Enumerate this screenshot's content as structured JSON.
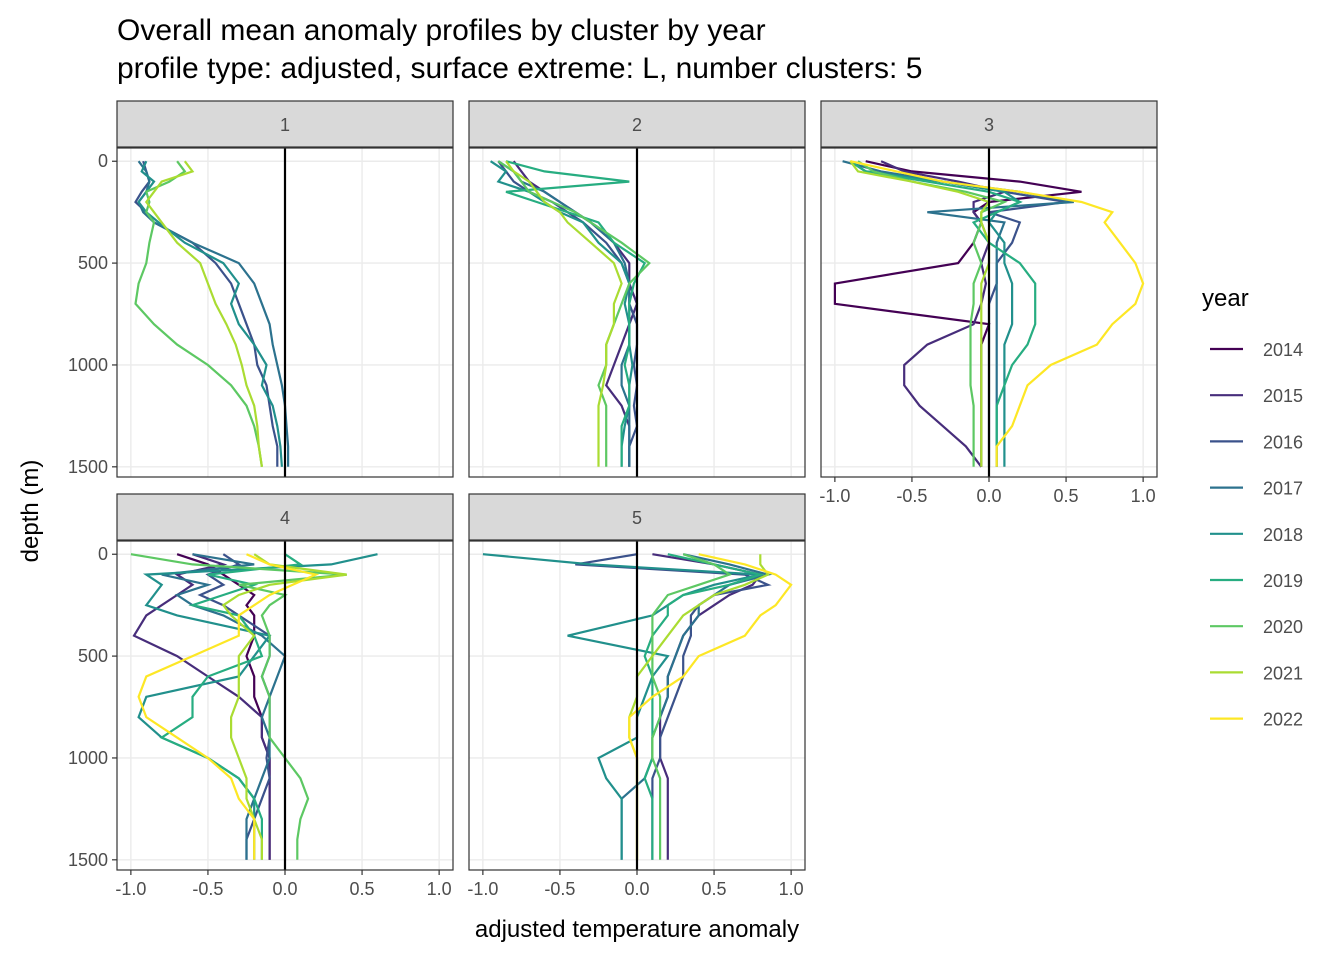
{
  "chart_data": {
    "type": "line",
    "title": "Overall mean anomaly profiles by cluster by year",
    "subtitle": "profile type: adjusted, surface extreme: L, number clusters: 5",
    "xlabel": "adjusted temperature anomaly",
    "ylabel": "depth (m)",
    "legend_title": "year",
    "facets": [
      "1",
      "2",
      "3",
      "4",
      "5"
    ],
    "xlim": [
      -1.09,
      1.09
    ],
    "xticks": [
      {
        "value": -1,
        "label": "-1.0"
      },
      {
        "value": -0.5,
        "label": "-0.5"
      },
      {
        "value": 0,
        "label": "0.0"
      },
      {
        "value": 0.5,
        "label": "0.5"
      },
      {
        "value": 1,
        "label": "1.0"
      }
    ],
    "ylim": [
      -65,
      1550
    ],
    "yticks": [
      0,
      500,
      1000,
      1500
    ],
    "grid": true,
    "reference_x": 0,
    "depth": [
      0,
      50,
      100,
      150,
      200,
      250,
      300,
      400,
      500,
      600,
      700,
      800,
      900,
      1000,
      1100,
      1200,
      1300,
      1400,
      1500
    ],
    "series": [
      {
        "name": "2014",
        "color": "#440154",
        "values": [
          null,
          null,
          [
            -0.8,
            -0.5,
            0.2,
            0.6,
            0.0,
            -0.1,
            -0.05,
            -0.1,
            -0.2,
            -1.0,
            -1.0,
            0.0,
            -0.05,
            -0.05,
            -0.05,
            -0.05,
            -0.05,
            -0.05,
            -0.05
          ],
          [
            -0.7,
            -0.5,
            -0.4,
            -0.3,
            -0.2,
            -0.25,
            -0.2,
            -0.2,
            -0.25,
            -0.2,
            -0.2,
            -0.15,
            -0.15,
            -0.1,
            -0.1,
            -0.1,
            -0.1,
            -0.1,
            -0.1
          ],
          null
        ]
      },
      {
        "name": "2015",
        "color": "#472D7B",
        "values": [
          null,
          [
            -0.8,
            -0.75,
            -0.7,
            -0.6,
            -0.5,
            -0.4,
            -0.3,
            -0.15,
            -0.05,
            -0.05,
            0.0,
            -0.05,
            -0.1,
            -0.15,
            -0.2,
            -0.1,
            -0.05,
            -0.05,
            -0.05
          ],
          [
            -0.7,
            -0.55,
            -0.2,
            0.1,
            -0.1,
            -0.1,
            -0.05,
            0,
            -0.05,
            -0.02,
            -0.05,
            -0.1,
            -0.4,
            -0.55,
            -0.55,
            -0.45,
            -0.3,
            -0.15,
            -0.05
          ],
          [
            -0.6,
            -0.4,
            -0.7,
            -0.6,
            -0.7,
            -0.8,
            -0.9,
            -0.98,
            -0.7,
            -0.5,
            -0.3,
            -0.15,
            -0.15,
            -0.1,
            -0.1,
            -0.1,
            -0.1,
            -0.1,
            -0.1
          ],
          [
            0.1,
            0.5,
            0.8,
            0.75,
            0.6,
            0.5,
            0.4,
            0.3,
            0.25,
            0.2,
            0.2,
            0.15,
            0.15,
            0.15,
            0.2,
            0.2,
            0.2,
            0.2,
            0.2
          ]
        ]
      },
      {
        "name": "2016",
        "color": "#3B528B",
        "values": [
          [
            -0.92,
            -0.9,
            -0.88,
            -0.93,
            -0.97,
            -0.9,
            -0.85,
            -0.6,
            -0.45,
            -0.35,
            -0.3,
            -0.25,
            -0.2,
            -0.18,
            -0.12,
            -0.1,
            -0.08,
            -0.05,
            -0.05
          ],
          [
            -0.9,
            -0.85,
            -0.8,
            -0.7,
            -0.55,
            -0.45,
            -0.35,
            -0.2,
            -0.1,
            -0.05,
            -0.05,
            0,
            0,
            -0.02,
            0,
            -0.02,
            0,
            -0.05,
            -0.05
          ],
          [
            -0.9,
            -0.8,
            -0.3,
            0.1,
            0.5,
            0.0,
            0.2,
            0.15,
            0.05,
            0.05,
            0.0,
            0.0,
            0.0,
            0.0,
            0.0,
            0.0,
            0.0,
            0.0,
            0.0
          ],
          [
            -0.4,
            -0.3,
            -0.5,
            -0.4,
            -0.55,
            -0.4,
            -0.3,
            -0.1,
            -0.1,
            -0.15,
            -0.1,
            -0.1,
            -0.1,
            -0.12,
            -0.1,
            -0.15,
            -0.2,
            -0.25,
            -0.25
          ],
          [
            0.0,
            -0.4,
            0.7,
            0.85,
            0.5,
            0.4,
            0.35,
            0.35,
            0.3,
            0.3,
            0.25,
            0.2,
            0.15,
            0.15,
            0.1,
            0.1,
            0.1,
            0.1,
            0.1
          ]
        ]
      },
      {
        "name": "2017",
        "color": "#2C728E",
        "values": [
          [
            -0.95,
            -0.9,
            -0.88,
            -0.9,
            -0.95,
            -0.92,
            -0.85,
            -0.6,
            -0.3,
            -0.2,
            -0.15,
            -0.1,
            -0.08,
            -0.05,
            -0.02,
            0,
            0.01,
            0.02,
            0.02
          ],
          [
            -0.9,
            -0.8,
            -0.75,
            -0.6,
            -0.5,
            -0.4,
            -0.3,
            -0.15,
            -0.08,
            -0.05,
            -0.05,
            -0.05,
            -0.05,
            -0.1,
            -0.1,
            -0.05,
            -0.05,
            -0.05,
            -0.05
          ],
          [
            -0.95,
            -0.7,
            -0.3,
            0.2,
            0.55,
            -0.4,
            0.1,
            0.05,
            0.05,
            0.05,
            0.05,
            0.05,
            0.05,
            0.05,
            0.05,
            0.05,
            0.05,
            0.05,
            0.05
          ],
          [
            -0.6,
            -0.2,
            -0.8,
            -0.5,
            -0.7,
            -0.6,
            -0.4,
            -0.15,
            0.0,
            -0.05,
            -0.1,
            -0.15,
            -0.1,
            -0.1,
            -0.15,
            -0.2,
            -0.25,
            -0.25,
            -0.25
          ],
          [
            0.3,
            0.6,
            0.85,
            0.6,
            0.5,
            0.4,
            0.4,
            0.3,
            0.25,
            0.2,
            0.2,
            0.15,
            0.1,
            0.1,
            0.05,
            -0.1,
            -0.1,
            -0.1,
            -0.1
          ]
        ]
      },
      {
        "name": "2018",
        "color": "#21908C",
        "values": [
          [
            -0.9,
            -0.93,
            -0.85,
            -0.9,
            -0.95,
            -0.9,
            -0.82,
            -0.65,
            -0.4,
            -0.3,
            -0.35,
            -0.3,
            -0.2,
            -0.12,
            -0.15,
            -0.08,
            -0.05,
            -0.03,
            -0.02
          ],
          [
            -0.95,
            -0.85,
            -0.9,
            -0.7,
            -0.6,
            -0.5,
            -0.35,
            -0.25,
            -0.1,
            -0.05,
            -0.08,
            -0.05,
            -0.05,
            -0.03,
            -0.05,
            -0.05,
            -0.08,
            -0.1,
            -0.1
          ],
          [
            -0.9,
            -0.8,
            -0.3,
            0.1,
            0.2,
            0.05,
            0.0,
            0.1,
            0.1,
            0.15,
            0.15,
            0.15,
            0.1,
            0.1,
            0.1,
            0.1,
            0.1,
            0.1,
            0.1
          ],
          [
            0.6,
            0.3,
            -0.9,
            -0.8,
            -0.85,
            -0.9,
            -0.7,
            -0.1,
            -0.2,
            -0.3,
            -0.9,
            -0.95,
            -0.8,
            -0.5,
            -0.3,
            -0.2,
            -0.2,
            -0.2,
            -0.2
          ],
          [
            -1.0,
            -0.3,
            0.8,
            0.5,
            0.3,
            0.2,
            0.1,
            -0.45,
            0.2,
            0.1,
            0.05,
            0.0,
            0.0,
            -0.25,
            -0.2,
            -0.1,
            -0.1,
            -0.1,
            -0.1
          ]
        ]
      },
      {
        "name": "2019",
        "color": "#27AD81",
        "values": [
          null,
          [
            -0.85,
            -0.6,
            -0.05,
            -0.85,
            -0.65,
            -0.45,
            -0.25,
            -0.15,
            0.05,
            -0.02,
            -0.05,
            -0.05,
            -0.05,
            -0.08,
            -0.05,
            -0.05,
            -0.1,
            -0.1,
            -0.1
          ],
          [
            -0.9,
            -0.8,
            -0.4,
            0.0,
            0.2,
            0.05,
            -0.1,
            0.0,
            0.2,
            0.3,
            0.3,
            0.3,
            0.25,
            0.15,
            0.1,
            0.05,
            0.05,
            0.05,
            0.05
          ],
          [
            0.0,
            0.1,
            -0.5,
            -0.2,
            -0.4,
            -0.6,
            -0.3,
            -0.2,
            -0.15,
            -0.5,
            -0.6,
            -0.6,
            -0.8,
            -0.5,
            -0.3,
            -0.2,
            -0.15,
            -0.15,
            -0.15
          ],
          [
            0.2,
            0.5,
            0.8,
            0.6,
            0.3,
            0.2,
            0.2,
            0.1,
            0.05,
            0.1,
            0.1,
            0.1,
            0.1,
            0.1,
            0.05,
            0.1,
            0.1,
            0.1,
            0.1
          ]
        ]
      },
      {
        "name": "2020",
        "color": "#5DC863",
        "values": [
          [
            -0.7,
            -0.65,
            -0.75,
            -0.9,
            -0.88,
            -0.9,
            -0.85,
            -0.88,
            -0.9,
            -0.95,
            -0.97,
            -0.85,
            -0.7,
            -0.5,
            -0.35,
            -0.25,
            -0.2,
            -0.17,
            -0.15
          ],
          [
            -0.9,
            -0.8,
            -0.75,
            -0.7,
            -0.55,
            -0.4,
            -0.3,
            -0.1,
            0.08,
            -0.05,
            -0.1,
            -0.15,
            -0.2,
            -0.2,
            -0.25,
            -0.2,
            -0.2,
            -0.2,
            -0.2
          ],
          [
            -0.85,
            -0.75,
            -0.5,
            -0.15,
            0.1,
            -0.05,
            -0.05,
            -0.1,
            -0.05,
            -0.1,
            -0.1,
            -0.12,
            -0.12,
            -0.12,
            -0.12,
            -0.1,
            -0.1,
            -0.1,
            -0.1
          ],
          [
            -1.0,
            -0.6,
            0.4,
            -0.3,
            0.0,
            -0.1,
            -0.15,
            -0.1,
            -0.1,
            -0.15,
            -0.1,
            -0.1,
            -0.1,
            0.0,
            0.1,
            0.15,
            0.1,
            0.08,
            0.08
          ],
          [
            0.3,
            0.5,
            0.6,
            0.4,
            0.2,
            0.15,
            0.1,
            0.1,
            0.1,
            0.1,
            0.15,
            0.15,
            0.1,
            0.1,
            0.15,
            0.15,
            0.15,
            0.15,
            0.15
          ]
        ]
      },
      {
        "name": "2021",
        "color": "#AADC32",
        "values": [
          [
            -0.65,
            -0.6,
            -0.8,
            -0.85,
            -0.9,
            -0.85,
            -0.8,
            -0.7,
            -0.55,
            -0.5,
            -0.45,
            -0.38,
            -0.32,
            -0.28,
            -0.25,
            -0.2,
            -0.18,
            -0.17,
            -0.15
          ],
          [
            -0.85,
            -0.8,
            -0.7,
            -0.65,
            -0.6,
            -0.5,
            -0.45,
            -0.3,
            -0.15,
            -0.1,
            -0.15,
            -0.15,
            -0.2,
            -0.2,
            -0.22,
            -0.25,
            -0.25,
            -0.25,
            -0.25
          ],
          [
            -0.9,
            -0.85,
            -0.5,
            -0.2,
            0.0,
            -0.05,
            -0.05,
            0.0,
            0.0,
            -0.05,
            -0.05,
            -0.05,
            -0.05,
            -0.05,
            -0.05,
            -0.05,
            -0.05,
            -0.05,
            -0.05
          ],
          [
            -0.2,
            -0.1,
            0.4,
            -0.1,
            -0.3,
            -0.4,
            -0.35,
            -0.2,
            -0.3,
            -0.3,
            -0.3,
            -0.35,
            -0.35,
            -0.3,
            -0.25,
            -0.25,
            -0.2,
            -0.15,
            -0.15
          ],
          [
            0.8,
            0.8,
            0.85,
            0.7,
            0.5,
            0.4,
            0.3,
            0.2,
            0.1,
            0.0,
            0.0,
            -0.05,
            -0.05,
            0.0,
            0.0,
            0.0,
            0.0,
            0.0,
            0.0
          ]
        ]
      },
      {
        "name": "2022",
        "color": "#FDE725",
        "values": [
          null,
          null,
          [
            -0.9,
            -0.6,
            -0.3,
            0.2,
            0.6,
            0.8,
            0.75,
            0.85,
            0.95,
            1.0,
            0.95,
            0.8,
            0.7,
            0.4,
            0.25,
            0.2,
            0.15,
            0.05,
            0.05
          ],
          [
            -0.25,
            -0.1,
            0.2,
            0.05,
            -0.1,
            -0.2,
            -0.3,
            -0.3,
            -0.6,
            -0.9,
            -0.95,
            -0.9,
            -0.7,
            -0.5,
            -0.35,
            -0.3,
            -0.2,
            -0.2,
            -0.2
          ],
          [
            0.4,
            0.7,
            0.9,
            1.0,
            0.95,
            0.9,
            0.8,
            0.7,
            0.4,
            0.3,
            0.1,
            -0.05,
            -0.05,
            0.0,
            0.0,
            0.0,
            0.0,
            0.0,
            0.0
          ]
        ]
      }
    ]
  }
}
